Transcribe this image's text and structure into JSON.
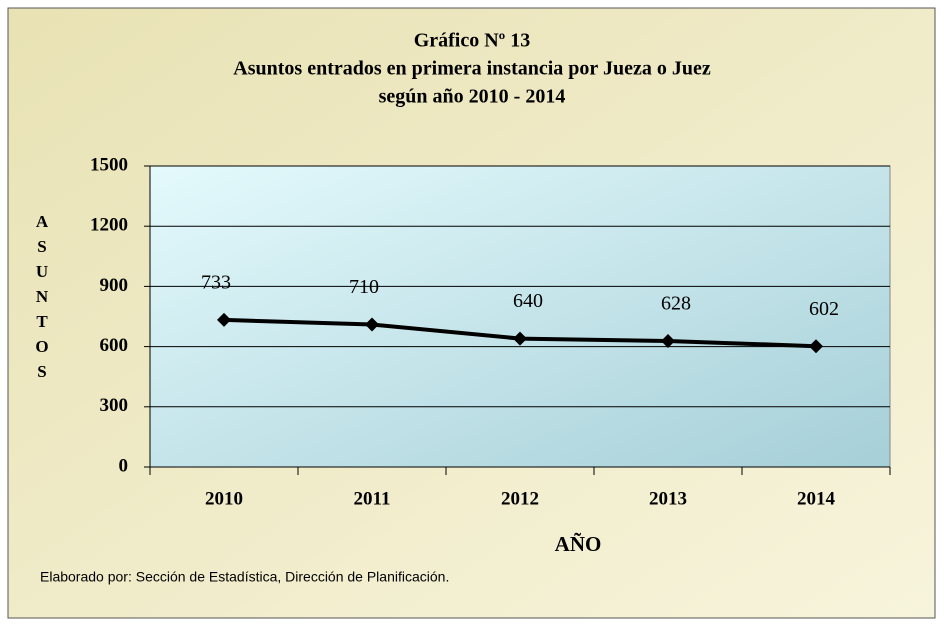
{
  "chart_data": {
    "type": "line",
    "title": [
      "Gráfico Nº 13",
      "Asuntos entrados en primera instancia por Jueza o Juez",
      "según año 2010 - 2014"
    ],
    "y_label": "ASUNTOS",
    "x_label": "AÑO",
    "note": "Elaborado por: Sección de Estadística,  Dirección de Planificación.",
    "categories": [
      "2010",
      "2011",
      "2012",
      "2013",
      "2014"
    ],
    "series": [
      {
        "name": "Asuntos",
        "color": "#000000",
        "values": [
          733,
          710,
          640,
          628,
          602
        ]
      }
    ],
    "ylim": [
      0,
      1500
    ],
    "yticks": [
      0,
      300,
      600,
      900,
      1200,
      1500
    ],
    "grid": true
  }
}
